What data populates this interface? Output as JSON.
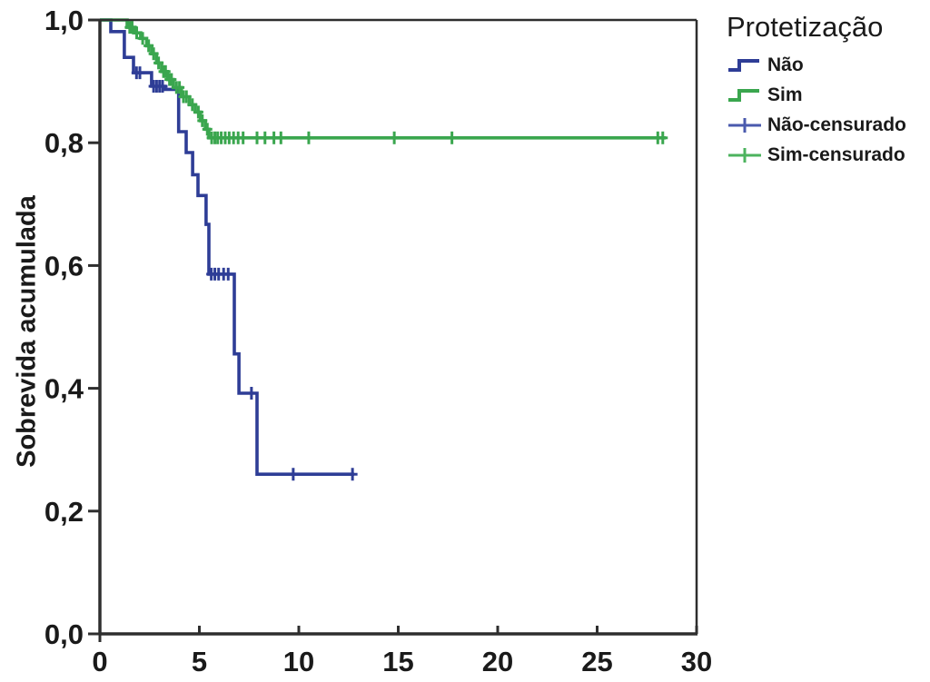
{
  "chart_data": {
    "type": "line",
    "subtype": "kaplan-meier-step",
    "title": "",
    "xlabel": "",
    "ylabel": "Sobrevida acumulada",
    "xlim": [
      0,
      30
    ],
    "ylim": [
      0.0,
      1.0
    ],
    "grid": false,
    "frame_color": "#2e2e2e",
    "x_ticks": [
      {
        "label": "0",
        "value": 0
      },
      {
        "label": "5",
        "value": 5
      },
      {
        "label": "10",
        "value": 10
      },
      {
        "label": "15",
        "value": 15
      },
      {
        "label": "20",
        "value": 20
      },
      {
        "label": "25",
        "value": 25
      },
      {
        "label": "30",
        "value": 30
      }
    ],
    "y_ticks": [
      {
        "label": "1,0",
        "value": 1.0
      },
      {
        "label": "0,8",
        "value": 0.8
      },
      {
        "label": "0,6",
        "value": 0.6
      },
      {
        "label": "0,4",
        "value": 0.4
      },
      {
        "label": "0,2",
        "value": 0.2
      },
      {
        "label": "0,0",
        "value": 0.0
      }
    ],
    "legend": {
      "title": "Protetização",
      "position": "top-right",
      "items": [
        {
          "label": "Não",
          "marker": "step",
          "color": "#2e3d96"
        },
        {
          "label": "Sim",
          "marker": "step",
          "color": "#3aa64e"
        },
        {
          "label": "Não-censurado",
          "marker": "plus",
          "color": "#4a5aad"
        },
        {
          "label": "Sim-censurado",
          "marker": "plus",
          "color": "#4cb35e"
        }
      ]
    },
    "series": [
      {
        "name": "Não",
        "color": "#2e3d96",
        "step_points": [
          [
            0,
            1.0
          ],
          [
            0.55,
            1.0
          ],
          [
            0.55,
            0.981
          ],
          [
            1.23,
            0.981
          ],
          [
            1.23,
            0.939
          ],
          [
            1.69,
            0.939
          ],
          [
            1.69,
            0.914
          ],
          [
            2.6,
            0.914
          ],
          [
            2.6,
            0.892
          ],
          [
            3.27,
            0.892
          ],
          [
            3.27,
            0.887
          ],
          [
            3.96,
            0.887
          ],
          [
            3.96,
            0.818
          ],
          [
            4.34,
            0.818
          ],
          [
            4.34,
            0.784
          ],
          [
            4.66,
            0.784
          ],
          [
            4.66,
            0.748
          ],
          [
            4.93,
            0.748
          ],
          [
            4.93,
            0.714
          ],
          [
            5.34,
            0.714
          ],
          [
            5.34,
            0.667
          ],
          [
            5.48,
            0.667
          ],
          [
            5.48,
            0.586
          ],
          [
            6.76,
            0.586
          ],
          [
            6.76,
            0.456
          ],
          [
            6.99,
            0.456
          ],
          [
            6.99,
            0.392
          ],
          [
            7.9,
            0.392
          ],
          [
            7.9,
            0.26
          ],
          [
            12.78,
            0.26
          ]
        ],
        "censored": [
          [
            1.84,
            0.914
          ],
          [
            2.01,
            0.914
          ],
          [
            2.7,
            0.892
          ],
          [
            2.85,
            0.892
          ],
          [
            3.0,
            0.892
          ],
          [
            3.15,
            0.892
          ],
          [
            5.6,
            0.586
          ],
          [
            5.78,
            0.586
          ],
          [
            5.97,
            0.586
          ],
          [
            6.22,
            0.586
          ],
          [
            6.45,
            0.586
          ],
          [
            7.62,
            0.392
          ],
          [
            9.72,
            0.26
          ],
          [
            12.7,
            0.26
          ]
        ]
      },
      {
        "name": "Sim",
        "color": "#3aa64e",
        "step_points": [
          [
            0,
            1.0
          ],
          [
            1.37,
            1.0
          ],
          [
            1.37,
            0.988
          ],
          [
            1.75,
            0.988
          ],
          [
            1.75,
            0.979
          ],
          [
            2.05,
            0.979
          ],
          [
            2.05,
            0.97
          ],
          [
            2.35,
            0.97
          ],
          [
            2.35,
            0.958
          ],
          [
            2.6,
            0.958
          ],
          [
            2.6,
            0.945
          ],
          [
            2.85,
            0.945
          ],
          [
            2.85,
            0.93
          ],
          [
            3.1,
            0.93
          ],
          [
            3.1,
            0.916
          ],
          [
            3.4,
            0.916
          ],
          [
            3.4,
            0.903
          ],
          [
            3.7,
            0.903
          ],
          [
            3.7,
            0.89
          ],
          [
            4.1,
            0.89
          ],
          [
            4.1,
            0.875
          ],
          [
            4.5,
            0.875
          ],
          [
            4.5,
            0.862
          ],
          [
            4.8,
            0.862
          ],
          [
            4.8,
            0.85
          ],
          [
            5.05,
            0.85
          ],
          [
            5.05,
            0.836
          ],
          [
            5.3,
            0.836
          ],
          [
            5.3,
            0.822
          ],
          [
            5.48,
            0.822
          ],
          [
            5.48,
            0.808
          ],
          [
            28.45,
            0.808
          ]
        ],
        "censored": [
          [
            1.5,
            0.988
          ],
          [
            1.62,
            0.988
          ],
          [
            1.85,
            0.979
          ],
          [
            2.15,
            0.97
          ],
          [
            2.45,
            0.958
          ],
          [
            2.7,
            0.945
          ],
          [
            2.95,
            0.93
          ],
          [
            3.2,
            0.916
          ],
          [
            3.3,
            0.916
          ],
          [
            3.5,
            0.903
          ],
          [
            3.6,
            0.903
          ],
          [
            3.85,
            0.89
          ],
          [
            4.0,
            0.89
          ],
          [
            4.2,
            0.875
          ],
          [
            4.35,
            0.875
          ],
          [
            4.65,
            0.862
          ],
          [
            4.95,
            0.85
          ],
          [
            5.15,
            0.836
          ],
          [
            5.4,
            0.822
          ],
          [
            5.62,
            0.808
          ],
          [
            5.78,
            0.808
          ],
          [
            5.92,
            0.808
          ],
          [
            6.1,
            0.808
          ],
          [
            6.3,
            0.808
          ],
          [
            6.5,
            0.808
          ],
          [
            6.72,
            0.808
          ],
          [
            6.95,
            0.808
          ],
          [
            7.2,
            0.808
          ],
          [
            7.9,
            0.808
          ],
          [
            8.3,
            0.808
          ],
          [
            8.75,
            0.808
          ],
          [
            9.1,
            0.808
          ],
          [
            10.5,
            0.808
          ],
          [
            14.8,
            0.808
          ],
          [
            17.7,
            0.808
          ],
          [
            28.05,
            0.808
          ],
          [
            28.3,
            0.808
          ]
        ]
      }
    ]
  }
}
